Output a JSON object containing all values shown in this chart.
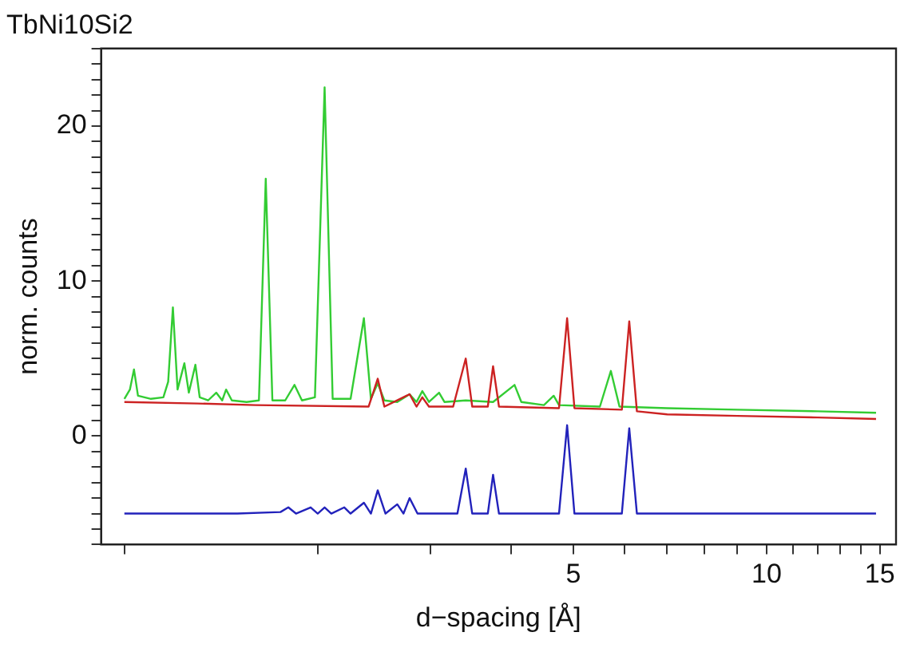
{
  "chart_data": {
    "type": "line",
    "title": "TbNi10Si2",
    "xlabel": "d−spacing [Å]",
    "ylabel": "norm. counts",
    "log": "x",
    "grid": false,
    "legend": false,
    "marker": "none",
    "line_style": "solid",
    "xlim": [
      0.92,
      15.9
    ],
    "ylim": [
      -7,
      25
    ],
    "xticks": [
      {
        "value": 1,
        "label": null
      },
      {
        "value": 2,
        "label": null
      },
      {
        "value": 3,
        "label": null
      },
      {
        "value": 4,
        "label": null
      },
      5,
      {
        "value": 6,
        "label": null
      },
      {
        "value": 7,
        "label": null
      },
      {
        "value": 8,
        "label": null
      },
      {
        "value": 9,
        "label": null
      },
      10,
      {
        "value": 11,
        "label": null
      },
      {
        "value": 12,
        "label": null
      },
      {
        "value": 13,
        "label": null
      },
      {
        "value": 14,
        "label": null
      },
      15
    ],
    "yticks": [
      {
        "value": -7,
        "label": null
      },
      {
        "value": -6,
        "label": null
      },
      {
        "value": -5,
        "label": null
      },
      {
        "value": -4,
        "label": null
      },
      {
        "value": -3,
        "label": null
      },
      {
        "value": -2,
        "label": null
      },
      {
        "value": -1,
        "label": null
      },
      0,
      {
        "value": 1,
        "label": null
      },
      {
        "value": 2,
        "label": null
      },
      {
        "value": 3,
        "label": null
      },
      {
        "value": 4,
        "label": null
      },
      {
        "value": 5,
        "label": null
      },
      {
        "value": 6,
        "label": null
      },
      {
        "value": 7,
        "label": null
      },
      {
        "value": 8,
        "label": null
      },
      {
        "value": 9,
        "label": null
      },
      10,
      {
        "value": 11,
        "label": null
      },
      {
        "value": 12,
        "label": null
      },
      {
        "value": 13,
        "label": null
      },
      {
        "value": 14,
        "label": null
      },
      {
        "value": 15,
        "label": null
      },
      {
        "value": 16,
        "label": null
      },
      {
        "value": 17,
        "label": null
      },
      {
        "value": 18,
        "label": null
      },
      {
        "value": 19,
        "label": null
      },
      20,
      {
        "value": 21,
        "label": null
      },
      {
        "value": 22,
        "label": null
      },
      {
        "value": 23,
        "label": null
      },
      {
        "value": 24,
        "label": null
      },
      {
        "value": 25,
        "label": null
      }
    ],
    "series": [
      {
        "color": "#cc2222",
        "x": [
          1.0,
          1.3,
          1.6,
          2.4,
          2.48,
          2.54,
          2.78,
          2.85,
          2.91,
          2.98,
          3.25,
          3.4,
          3.48,
          3.68,
          3.75,
          3.83,
          4.75,
          4.89,
          5.02,
          5.95,
          6.11,
          6.28,
          7,
          9,
          12,
          14.8
        ],
        "values": [
          2.2,
          2.1,
          2.0,
          1.9,
          3.7,
          1.9,
          2.7,
          1.9,
          2.5,
          1.9,
          1.9,
          5.0,
          1.9,
          1.9,
          4.5,
          1.9,
          1.8,
          7.6,
          1.8,
          1.7,
          7.4,
          1.6,
          1.4,
          1.3,
          1.2,
          1.1
        ]
      },
      {
        "color": "#33cc33",
        "x": [
          1.0,
          1.02,
          1.035,
          1.05,
          1.1,
          1.15,
          1.17,
          1.19,
          1.21,
          1.24,
          1.26,
          1.29,
          1.31,
          1.35,
          1.39,
          1.42,
          1.44,
          1.47,
          1.55,
          1.62,
          1.66,
          1.7,
          1.78,
          1.84,
          1.89,
          1.98,
          2.05,
          2.11,
          2.25,
          2.36,
          2.42,
          2.48,
          2.54,
          2.66,
          2.78,
          2.85,
          2.91,
          2.98,
          3.09,
          3.15,
          3.4,
          3.75,
          4.05,
          4.15,
          4.5,
          4.66,
          4.75,
          5.5,
          5.72,
          5.9,
          7,
          9,
          12,
          14.8
        ],
        "values": [
          2.4,
          3.0,
          4.3,
          2.6,
          2.4,
          2.5,
          3.5,
          8.3,
          3.0,
          4.7,
          2.8,
          4.6,
          2.5,
          2.3,
          2.8,
          2.3,
          3.0,
          2.3,
          2.2,
          2.3,
          16.6,
          2.3,
          2.3,
          3.3,
          2.3,
          2.5,
          22.5,
          2.4,
          2.4,
          7.6,
          2.4,
          3.4,
          2.3,
          2.2,
          2.7,
          2.2,
          2.9,
          2.2,
          2.8,
          2.2,
          2.3,
          2.2,
          3.3,
          2.2,
          2.0,
          2.6,
          2.0,
          1.9,
          4.2,
          1.9,
          1.8,
          1.7,
          1.6,
          1.5
        ]
      },
      {
        "color": "#2222bb",
        "x": [
          1.0,
          1.5,
          1.75,
          1.8,
          1.85,
          1.95,
          2.0,
          2.05,
          2.1,
          2.2,
          2.25,
          2.36,
          2.42,
          2.48,
          2.55,
          2.66,
          2.72,
          2.78,
          2.86,
          3.3,
          3.4,
          3.48,
          3.68,
          3.75,
          3.83,
          4.75,
          4.89,
          5.02,
          5.95,
          6.11,
          6.28,
          10,
          14.8
        ],
        "values": [
          -5.0,
          -5.0,
          -4.9,
          -4.6,
          -5.0,
          -4.6,
          -5.0,
          -4.6,
          -5.0,
          -4.6,
          -5.0,
          -4.3,
          -5.0,
          -3.5,
          -5.0,
          -4.4,
          -5.0,
          -4.0,
          -5.0,
          -5.0,
          -2.1,
          -5.0,
          -5.0,
          -2.5,
          -5.0,
          -5.0,
          0.7,
          -5.0,
          -5.0,
          0.5,
          -5.0,
          -5.0,
          -5.0
        ]
      }
    ]
  }
}
